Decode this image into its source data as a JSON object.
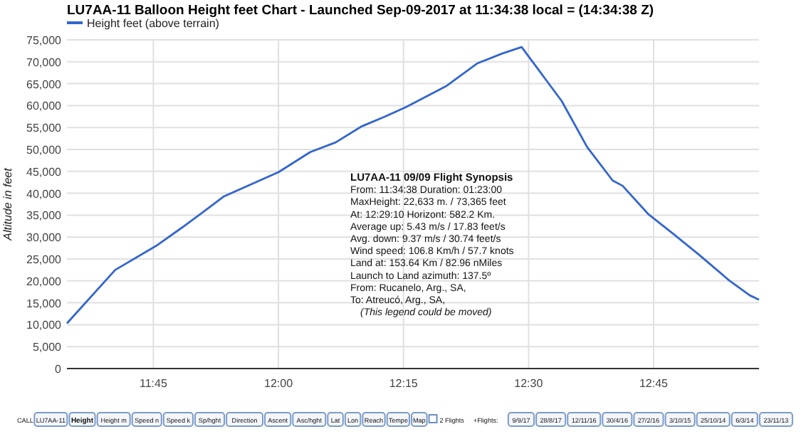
{
  "chart_data": {
    "type": "line",
    "title": "LU7AA-11 Balloon Height feet Chart - Launched Sep-09-2017 at 11:34:38 local = (14:34:38 Z)",
    "ylabel": "Altitude in feet",
    "series": [
      {
        "name": "Height feet (above terrain)",
        "color": "#3366cc",
        "x": [
          11.5772,
          11.6737,
          11.7556,
          11.8065,
          11.8573,
          11.8912,
          12.0,
          12.0636,
          12.1144,
          12.1653,
          12.2133,
          12.2557,
          12.3347,
          12.3969,
          12.4477,
          12.4861,
          12.5664,
          12.6172,
          12.6681,
          12.6879,
          12.7387,
          12.7895,
          12.8404,
          12.9,
          12.9421,
          12.9606
        ],
        "values": [
          10300,
          22500,
          28000,
          32100,
          36400,
          39300,
          44800,
          49400,
          51600,
          55200,
          57500,
          59700,
          64400,
          69600,
          71900,
          73365,
          61000,
          50500,
          42900,
          41700,
          35300,
          30700,
          26000,
          20200,
          16700,
          15700
        ]
      }
    ],
    "xlim": [
      11.5772,
      12.9606
    ],
    "xticks": [
      {
        "value": 11.75,
        "label": "11:45"
      },
      {
        "value": 12.0,
        "label": "12:00"
      },
      {
        "value": 12.25,
        "label": "12:15"
      },
      {
        "value": 12.5,
        "label": "12:30"
      },
      {
        "value": 12.75,
        "label": "12:45"
      }
    ],
    "ylim": [
      0,
      75000
    ],
    "yticks": [
      {
        "value": 0,
        "label": "0"
      },
      {
        "value": 5000,
        "label": "5,000"
      },
      {
        "value": 10000,
        "label": "10,000"
      },
      {
        "value": 15000,
        "label": "15,000"
      },
      {
        "value": 20000,
        "label": "20,000"
      },
      {
        "value": 25000,
        "label": "25,000"
      },
      {
        "value": 30000,
        "label": "30,000"
      },
      {
        "value": 35000,
        "label": "35,000"
      },
      {
        "value": 40000,
        "label": "40,000"
      },
      {
        "value": 45000,
        "label": "45,000"
      },
      {
        "value": 50000,
        "label": "50,000"
      },
      {
        "value": 55000,
        "label": "55,000"
      },
      {
        "value": 60000,
        "label": "60,000"
      },
      {
        "value": 65000,
        "label": "65,000"
      },
      {
        "value": 70000,
        "label": "70,000"
      },
      {
        "value": 75000,
        "label": "75,000"
      }
    ],
    "grid": true,
    "legend": "top left",
    "marker": "none",
    "line_style": "solid",
    "annotations": [
      "LU7AA-11 09/09 Flight Synopsis\nFrom: 11:34:38 Duration: 01:23:00\nMaxHeight: 22,633 m. / 73,365 feet\nAt: 12:29:10 Horizont: 582.2 Km.\nAverage up: 5.43 m/s / 17.83 feet/s\nAvg. down: 9.37 m/s / 30.74 feet/s\nWind speed: 106.8 Km/h / 57.7 knots\nLand at: 153.64 Km / 82.96 nMiles\nLaunch to Land azimuth: 137.5º\nFrom: Rucanelo, Arg., SA,\nTo: Atreucó, Arg., SA,\n(This legend could be moved)",
      "CALL",
      "LU7AA-11",
      "Height",
      "Height m",
      "Speed n",
      "Speed k",
      "Sp/hght",
      "Direction",
      "Ascent",
      "Asc/hght",
      "Lat",
      "Lon",
      "Reach",
      "Tempe",
      "Map",
      "2 Flights",
      "+Flights:",
      "9/9/17",
      "28/8/17",
      "12/11/16",
      "30/4/16",
      "27/2/16",
      "3/10/15",
      "25/10/14",
      "6/3/14",
      "23/11/13"
    ]
  }
}
